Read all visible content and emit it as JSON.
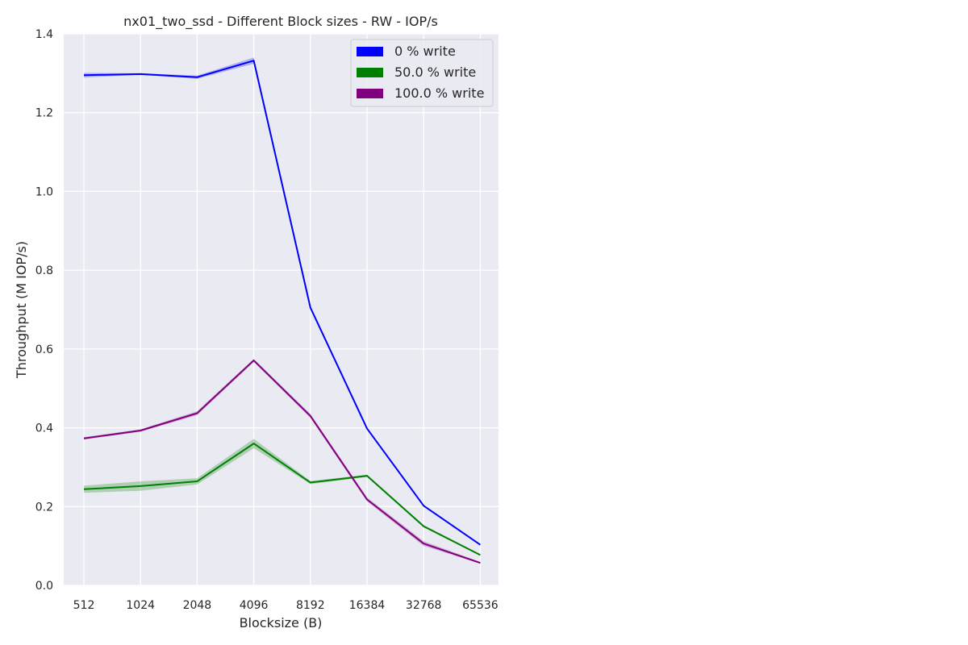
{
  "chart_data": {
    "type": "line",
    "title": "nx01_two_ssd - Different Block sizes - RW - IOP/s",
    "xlabel": "Blocksize (B)",
    "ylabel": "Throughput (M IOP/s)",
    "categories": [
      "512",
      "1024",
      "2048",
      "4096",
      "8192",
      "16384",
      "32768",
      "65536"
    ],
    "ylim": [
      0,
      1.4
    ],
    "yticks": [
      "0.0",
      "0.2",
      "0.4",
      "0.6",
      "0.8",
      "1.0",
      "1.2",
      "1.4"
    ],
    "grid": true,
    "legend_position": "top-right",
    "series": [
      {
        "name": "0 % write",
        "color": "#0000ff",
        "values": [
          1.295,
          1.298,
          1.29,
          1.332,
          0.705,
          0.398,
          0.202,
          0.103
        ],
        "band": [
          0.006,
          0.002,
          0.004,
          0.008,
          0.004,
          0.002,
          0.002,
          0.001
        ]
      },
      {
        "name": "50.0 % write",
        "color": "#008000",
        "values": [
          0.244,
          0.252,
          0.264,
          0.36,
          0.261,
          0.278,
          0.15,
          0.077
        ],
        "band": [
          0.009,
          0.012,
          0.008,
          0.012,
          0.004,
          0.003,
          0.003,
          0.002
        ]
      },
      {
        "name": "100.0 % write",
        "color": "#800080",
        "values": [
          0.373,
          0.393,
          0.437,
          0.571,
          0.43,
          0.218,
          0.106,
          0.057
        ],
        "band": [
          0.003,
          0.003,
          0.005,
          0.004,
          0.005,
          0.005,
          0.006,
          0.002
        ]
      }
    ]
  }
}
